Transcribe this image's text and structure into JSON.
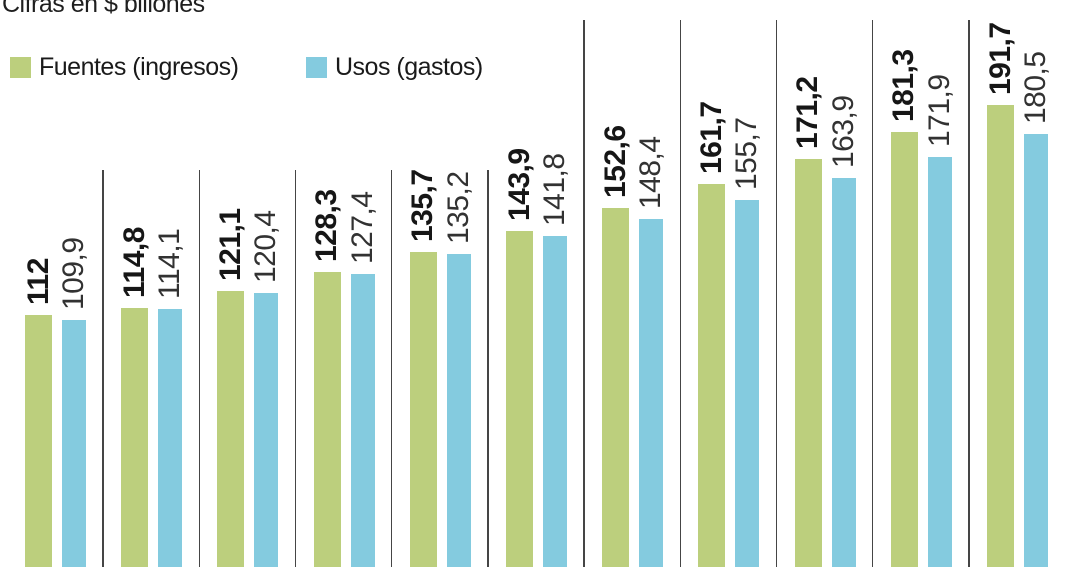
{
  "title": "Cifras en $ billones",
  "legend": {
    "items": [
      {
        "label": "Fuentes (ingresos)",
        "color": "#bccf7d"
      },
      {
        "label": "Usos (gastos)",
        "color": "#84cbdf"
      }
    ]
  },
  "chart_data": {
    "type": "bar",
    "title": "Cifras en $ billones",
    "unit": "$ billones",
    "legend_position": "top-left",
    "axes_visible": false,
    "grid": "vertical-group-dividers",
    "n_groups": 11,
    "series": [
      {
        "name": "Fuentes (ingresos)",
        "color": "#bccf7d",
        "values": [
          112,
          114.8,
          121.1,
          128.3,
          135.7,
          143.9,
          152.6,
          161.7,
          171.2,
          181.3,
          191.7
        ],
        "labels": [
          "112",
          "114,8",
          "121,1",
          "128,3",
          "135,7",
          "143,9",
          "152,6",
          "161,7",
          "171,2",
          "181,3",
          "191,7"
        ]
      },
      {
        "name": "Usos (gastos)",
        "color": "#84cbdf",
        "values": [
          109.9,
          114.1,
          120.4,
          127.4,
          135.2,
          141.8,
          148.4,
          155.7,
          163.9,
          171.9,
          180.5
        ],
        "labels": [
          "109,9",
          "114,1",
          "120,4",
          "127,4",
          "135,2",
          "141,8",
          "148,4",
          "155,7",
          "163,9",
          "171,9",
          "180,5"
        ]
      }
    ]
  }
}
